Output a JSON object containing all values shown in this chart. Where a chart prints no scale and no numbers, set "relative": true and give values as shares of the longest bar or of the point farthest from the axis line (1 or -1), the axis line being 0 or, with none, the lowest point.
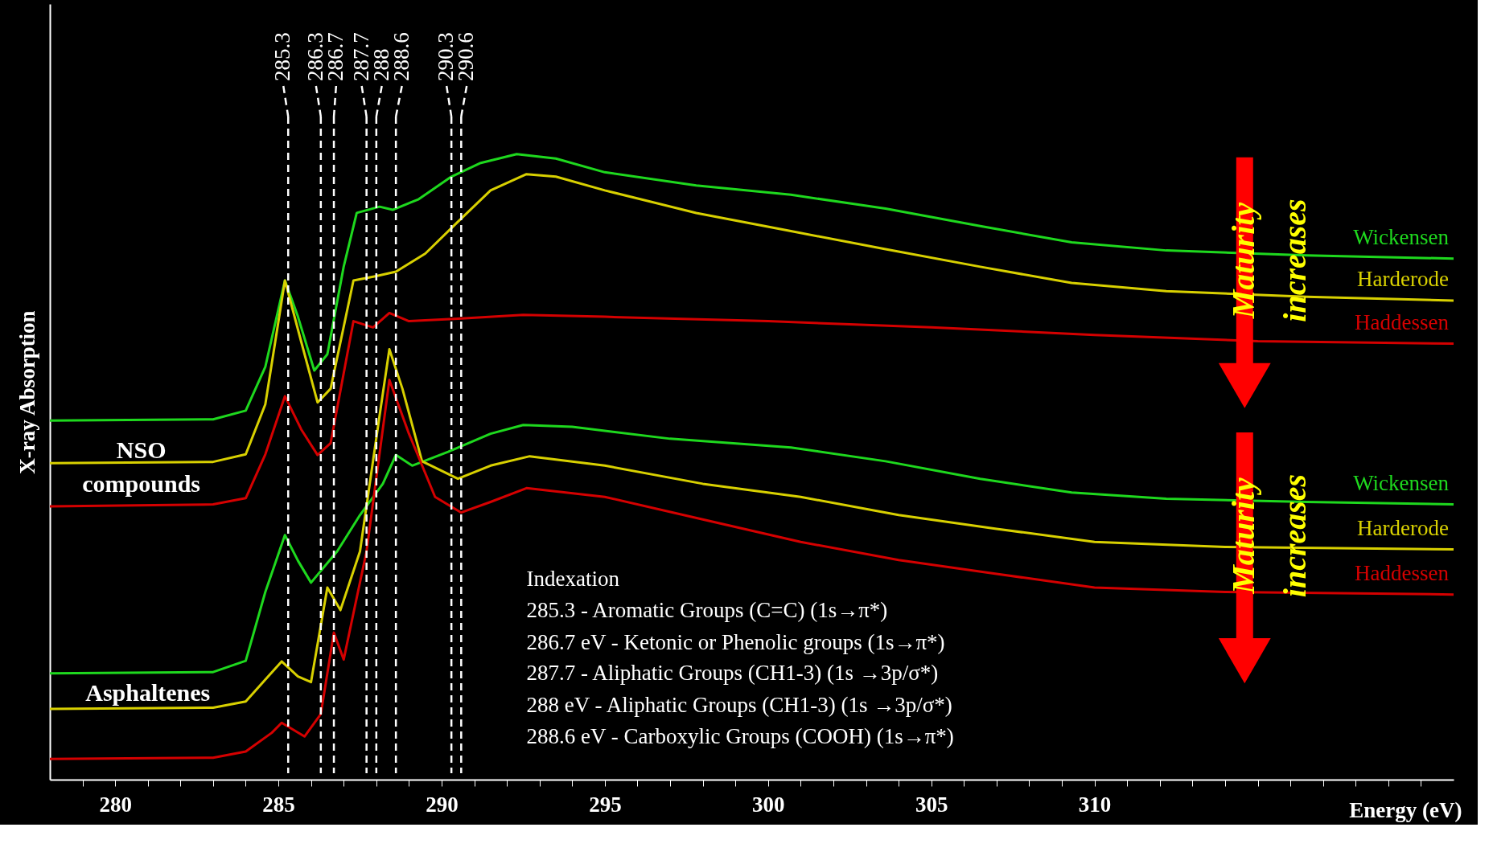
{
  "chart_data": {
    "type": "line",
    "relative": true,
    "xlabel": "Energy (eV)",
    "ylabel": "X-ray Absorption",
    "xlim": [
      278,
      321
    ],
    "xticks": [
      {
        "value": 279,
        "label": null
      },
      280,
      {
        "value": 281,
        "label": null
      },
      {
        "value": 282,
        "label": null
      },
      {
        "value": 283,
        "label": null
      },
      {
        "value": 284,
        "label": null
      },
      285,
      {
        "value": 286,
        "label": null
      },
      {
        "value": 287,
        "label": null
      },
      {
        "value": 288,
        "label": null
      },
      {
        "value": 289,
        "label": null
      },
      290,
      {
        "value": 291,
        "label": null
      },
      {
        "value": 292,
        "label": null
      },
      {
        "value": 293,
        "label": null
      },
      {
        "value": 294,
        "label": null
      },
      295,
      {
        "value": 296,
        "label": null
      },
      {
        "value": 297,
        "label": null
      },
      {
        "value": 298,
        "label": null
      },
      {
        "value": 299,
        "label": null
      },
      300,
      {
        "value": 301,
        "label": null
      },
      {
        "value": 302,
        "label": null
      },
      {
        "value": 303,
        "label": null
      },
      {
        "value": 304,
        "label": null
      },
      305,
      {
        "value": 306,
        "label": null
      },
      {
        "value": 307,
        "label": null
      },
      {
        "value": 308,
        "label": null
      },
      {
        "value": 309,
        "label": null
      },
      310,
      {
        "value": 311,
        "label": null
      },
      {
        "value": 312,
        "label": null
      },
      {
        "value": 313,
        "label": null
      },
      {
        "value": 314,
        "label": null
      },
      {
        "value": 315,
        "label": null
      },
      {
        "value": 316,
        "label": null
      },
      {
        "value": 317,
        "label": null
      },
      {
        "value": 318,
        "label": null
      },
      {
        "value": 319,
        "label": null
      },
      {
        "value": 320,
        "label": null
      }
    ],
    "grid": false,
    "legend": false,
    "line_style": "solid",
    "marker": "none",
    "series": [
      {
        "name": "Wickensen",
        "color": "#1ed81e",
        "x": [
          278,
          283,
          284,
          284.6,
          285.2,
          285.6,
          286.1,
          286.5,
          287,
          287.4,
          288.1,
          288.5,
          289.3,
          290.3,
          291.2,
          292.3,
          293.5,
          295,
          297.8,
          300.7,
          303.6,
          306.5,
          309.3,
          312.2,
          316.5,
          321
        ],
        "values": [
          0.574,
          0.576,
          0.59,
          0.66,
          0.798,
          0.74,
          0.654,
          0.68,
          0.82,
          0.906,
          0.916,
          0.911,
          0.928,
          0.964,
          0.986,
          1.0,
          0.993,
          0.971,
          0.95,
          0.935,
          0.913,
          0.885,
          0.859,
          0.846,
          0.838,
          0.833
        ]
      },
      {
        "name": "Harderode",
        "color": "#d8d000",
        "x": [
          278,
          283,
          284,
          284.6,
          285.2,
          285.7,
          286.2,
          286.6,
          287.3,
          288,
          288.6,
          289.5,
          290.5,
          291.5,
          292.6,
          293.5,
          295,
          297.8,
          300.7,
          303.6,
          306.5,
          309.3,
          312.2,
          316.5,
          321
        ],
        "values": [
          0.506,
          0.508,
          0.52,
          0.6,
          0.798,
          0.7,
          0.603,
          0.625,
          0.798,
          0.805,
          0.812,
          0.841,
          0.892,
          0.942,
          0.968,
          0.964,
          0.942,
          0.906,
          0.877,
          0.848,
          0.82,
          0.794,
          0.781,
          0.772,
          0.766
        ]
      },
      {
        "name": "Haddessen",
        "color": "#d40000",
        "x": [
          278,
          283,
          284,
          284.6,
          285.2,
          285.7,
          286.2,
          286.6,
          287.3,
          287.9,
          288.4,
          289,
          290.5,
          292.5,
          295,
          300,
          305,
          310,
          315,
          321
        ],
        "values": [
          0.437,
          0.44,
          0.45,
          0.52,
          0.613,
          0.56,
          0.519,
          0.538,
          0.733,
          0.723,
          0.746,
          0.733,
          0.737,
          0.743,
          0.74,
          0.733,
          0.723,
          0.711,
          0.701,
          0.697
        ]
      },
      {
        "name": "Wickensen",
        "color": "#1ed81e",
        "x": [
          278,
          283,
          284,
          284.6,
          285.2,
          285.6,
          286,
          286.8,
          287.5,
          288.2,
          288.6,
          289.1,
          290.2,
          291.5,
          292.5,
          294,
          297,
          300.7,
          303.6,
          306.5,
          309.3,
          312.2,
          316.5,
          321
        ],
        "values": [
          0.17,
          0.172,
          0.19,
          0.3,
          0.391,
          0.35,
          0.315,
          0.365,
          0.423,
          0.473,
          0.519,
          0.502,
          0.524,
          0.553,
          0.567,
          0.564,
          0.545,
          0.531,
          0.509,
          0.481,
          0.459,
          0.449,
          0.444,
          0.44
        ]
      },
      {
        "name": "Harderode",
        "color": "#d8d000",
        "x": [
          278,
          283,
          284,
          284.6,
          285.1,
          285.6,
          286,
          286.5,
          286.9,
          287.5,
          288.1,
          288.4,
          288.8,
          289.4,
          290.5,
          291.5,
          292.7,
          295,
          298,
          301,
          304,
          307,
          310,
          314,
          321
        ],
        "values": [
          0.113,
          0.115,
          0.125,
          0.16,
          0.189,
          0.165,
          0.156,
          0.307,
          0.271,
          0.365,
          0.582,
          0.688,
          0.625,
          0.509,
          0.481,
          0.502,
          0.517,
          0.502,
          0.473,
          0.452,
          0.423,
          0.401,
          0.38,
          0.372,
          0.368
        ]
      },
      {
        "name": "Haddessen",
        "color": "#d40000",
        "x": [
          278,
          283,
          284,
          284.8,
          285.1,
          285.8,
          286.3,
          286.7,
          287,
          287.7,
          288.4,
          289,
          289.8,
          290.6,
          291.5,
          292.6,
          295,
          298,
          301,
          304,
          307,
          310,
          314,
          321
        ],
        "values": [
          0.033,
          0.035,
          0.045,
          0.075,
          0.091,
          0.069,
          0.105,
          0.235,
          0.192,
          0.365,
          0.639,
          0.553,
          0.452,
          0.427,
          0.444,
          0.466,
          0.452,
          0.416,
          0.38,
          0.351,
          0.329,
          0.307,
          0.3,
          0.296
        ]
      }
    ],
    "ref_lines": [
      {
        "axis": "x",
        "value": 285.3,
        "label": "285.3",
        "color": "#ffffff",
        "line_style": "dashed"
      },
      {
        "axis": "x",
        "value": 286.3,
        "label": "286.3",
        "color": "#ffffff",
        "line_style": "dashed"
      },
      {
        "axis": "x",
        "value": 286.7,
        "label": "286.7",
        "color": "#ffffff",
        "line_style": "dashed"
      },
      {
        "axis": "x",
        "value": 287.7,
        "label": "287.7",
        "color": "#ffffff",
        "line_style": "dashed"
      },
      {
        "axis": "x",
        "value": 288,
        "label": "288",
        "color": "#ffffff",
        "line_style": "dashed"
      },
      {
        "axis": "x",
        "value": 288.6,
        "label": "288.6",
        "color": "#ffffff",
        "line_style": "dashed"
      },
      {
        "axis": "x",
        "value": 290.3,
        "label": "290.3",
        "color": "#ffffff",
        "line_style": "dashed"
      },
      {
        "axis": "x",
        "value": 290.6,
        "label": "290.6",
        "color": "#ffffff",
        "line_style": "dashed"
      }
    ],
    "annotations": [
      "NSO compounds",
      "Asphaltenes",
      "Indexation",
      "285.3 - Aromatic Groups (C=C) (1s→π*)",
      "286.7 eV - Ketonic or Phenolic groups (1s→π*)",
      "287.7 - Aliphatic Groups (CH1-3) (1s →3p/σ*)",
      "288 eV - Aliphatic Groups (CH1-3) (1s →3p/σ*)",
      "288.6 eV - Carboxylic Groups (COOH) (1s→π*)",
      "Maturity increases",
      "Maturity increases"
    ]
  }
}
